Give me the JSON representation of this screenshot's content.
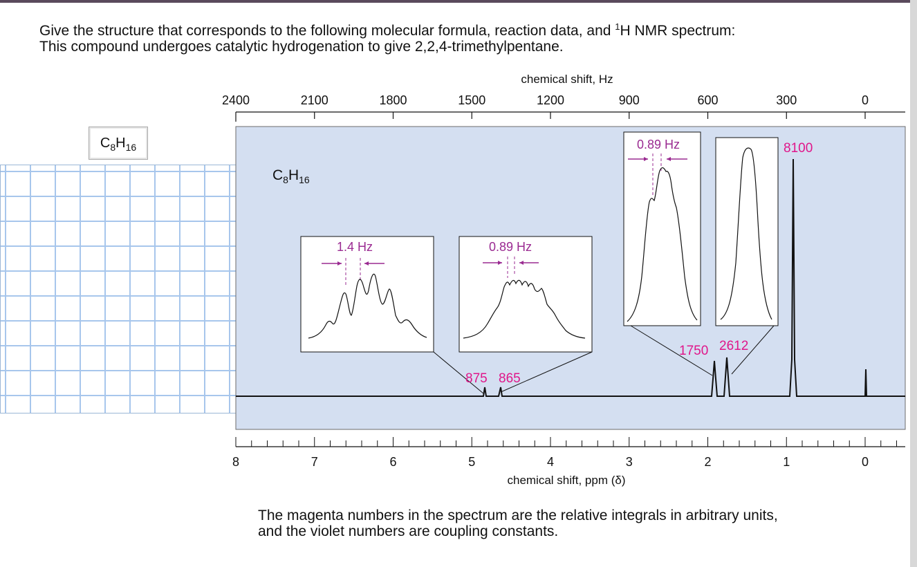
{
  "question": {
    "line1_a": "Give the structure that corresponds to the following molecular formula, reaction data, and ",
    "line1_sup": "1",
    "line1_b": "H NMR spectrum:",
    "line2": "This compound undergoes catalytic hydrogenation to give 2,2,4-trimethylpentane."
  },
  "formula_box": {
    "c": "C",
    "c_sub": "8",
    "h": "H",
    "h_sub": "16"
  },
  "spectrum": {
    "formula": {
      "c": "C",
      "c_sub": "8",
      "h": "H",
      "h_sub": "16"
    },
    "top_axis": {
      "label": "chemical shift, Hz",
      "ticks": [
        "2400",
        "2100",
        "1800",
        "1500",
        "1200",
        "900",
        "600",
        "300",
        "0"
      ]
    },
    "bottom_axis": {
      "label": "chemical shift, ppm (δ)",
      "ticks": [
        "8",
        "7",
        "6",
        "5",
        "4",
        "3",
        "2",
        "1",
        "0"
      ]
    },
    "integrals": [
      {
        "label": "875",
        "ppm": 4.84
      },
      {
        "label": "865",
        "ppm": 4.63
      },
      {
        "label": "1750",
        "ppm": 1.93
      },
      {
        "label": "2612",
        "ppm": 1.77
      },
      {
        "label": "8100",
        "ppm": 0.93
      }
    ],
    "insets": [
      {
        "coupling": "1.4 Hz"
      },
      {
        "coupling": "0.89 Hz"
      },
      {
        "coupling": "0.89 Hz"
      },
      {
        "coupling": ""
      }
    ],
    "colors": {
      "background": "#d4dff1",
      "integral": "#e0168a",
      "coupling": "#9a2a91"
    }
  },
  "footnote": {
    "line1": "The magenta numbers in the spectrum are the relative integrals in arbitrary units,",
    "line2": "and the violet numbers are coupling constants."
  }
}
